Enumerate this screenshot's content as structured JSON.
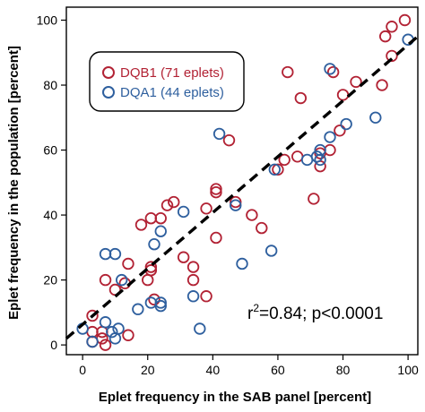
{
  "chart_data": {
    "type": "scatter",
    "xlabel": "Eplet frequency in the SAB panel [percent]",
    "ylabel": "Eplet frequency in the population [percent]",
    "xlim": [
      -5,
      103
    ],
    "ylim": [
      -3,
      104
    ],
    "xticks": [
      0,
      20,
      40,
      60,
      80,
      100
    ],
    "yticks": [
      0,
      20,
      40,
      60,
      80,
      100
    ],
    "grid": false,
    "legend_position": "top-left",
    "annotation": {
      "prefix": "r",
      "sup": "2",
      "suffix": "=0.84; p<0.0001"
    },
    "regression_line": {
      "style": "dashed",
      "color": "#000000",
      "from": [
        -5,
        2
      ],
      "to": [
        103,
        95
      ]
    },
    "series": [
      {
        "name": "DQB1 (71 eplets)",
        "color": "#b22234",
        "points": [
          [
            3,
            1
          ],
          [
            3,
            4
          ],
          [
            3,
            9
          ],
          [
            6,
            2
          ],
          [
            6,
            4
          ],
          [
            7,
            0
          ],
          [
            7,
            20
          ],
          [
            10,
            17
          ],
          [
            13,
            19
          ],
          [
            14,
            3
          ],
          [
            14,
            25
          ],
          [
            18,
            37
          ],
          [
            20,
            20
          ],
          [
            21,
            23
          ],
          [
            21,
            24
          ],
          [
            21,
            39
          ],
          [
            22,
            14
          ],
          [
            24,
            39
          ],
          [
            26,
            43
          ],
          [
            28,
            44
          ],
          [
            31,
            27
          ],
          [
            34,
            20
          ],
          [
            34,
            24
          ],
          [
            38,
            15
          ],
          [
            38,
            42
          ],
          [
            41,
            33
          ],
          [
            41,
            47
          ],
          [
            41,
            48
          ],
          [
            45,
            63
          ],
          [
            47,
            44
          ],
          [
            52,
            40
          ],
          [
            55,
            36
          ],
          [
            60,
            54
          ],
          [
            62,
            57
          ],
          [
            63,
            84
          ],
          [
            66,
            58
          ],
          [
            67,
            76
          ],
          [
            71,
            45
          ],
          [
            73,
            55
          ],
          [
            73,
            59
          ],
          [
            76,
            60
          ],
          [
            77,
            84
          ],
          [
            79,
            66
          ],
          [
            80,
            77
          ],
          [
            84,
            81
          ],
          [
            92,
            80
          ],
          [
            93,
            95
          ],
          [
            95,
            89
          ],
          [
            95,
            98
          ],
          [
            99,
            100
          ]
        ]
      },
      {
        "name": "DQA1 (44 eplets)",
        "color": "#2e5f9e",
        "points": [
          [
            0,
            5
          ],
          [
            3,
            1
          ],
          [
            7,
            7
          ],
          [
            7,
            28
          ],
          [
            9,
            4
          ],
          [
            10,
            28
          ],
          [
            10,
            2
          ],
          [
            11,
            5
          ],
          [
            12,
            20
          ],
          [
            17,
            11
          ],
          [
            21,
            13
          ],
          [
            22,
            31
          ],
          [
            24,
            35
          ],
          [
            24,
            13
          ],
          [
            24,
            12
          ],
          [
            31,
            41
          ],
          [
            34,
            15
          ],
          [
            36,
            5
          ],
          [
            42,
            65
          ],
          [
            47,
            43
          ],
          [
            49,
            25
          ],
          [
            58,
            29
          ],
          [
            59,
            54
          ],
          [
            69,
            57
          ],
          [
            72,
            58
          ],
          [
            73,
            57
          ],
          [
            73,
            60
          ],
          [
            76,
            64
          ],
          [
            76,
            85
          ],
          [
            81,
            68
          ],
          [
            90,
            70
          ],
          [
            100,
            94
          ]
        ]
      }
    ]
  }
}
